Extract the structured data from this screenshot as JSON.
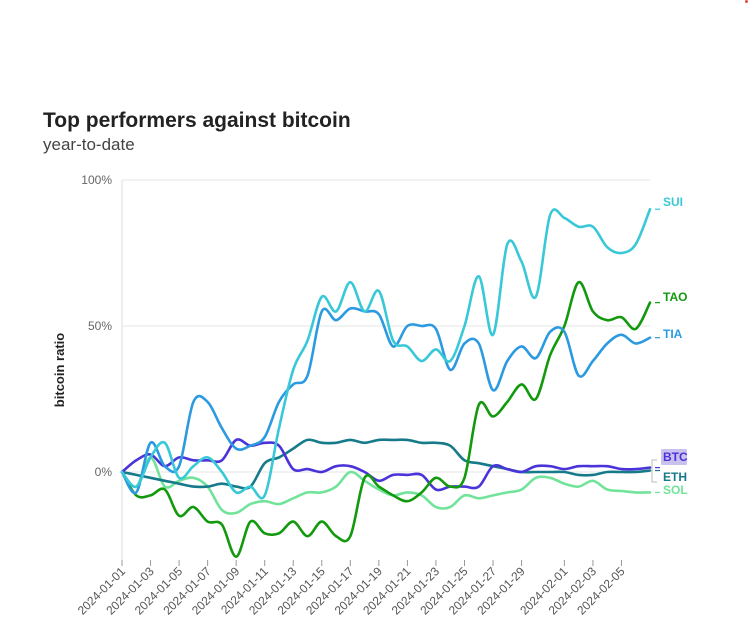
{
  "header": {
    "title": "Top performers against bitcoin",
    "subtitle": "year-to-date"
  },
  "chart_data": {
    "type": "line",
    "title": "Top performers against bitcoin",
    "subtitle": "year-to-date",
    "xlabel": "",
    "ylabel": "bitcoin ratio",
    "ylim": [
      -0.3,
      1.0
    ],
    "yticks": [
      {
        "value": 0,
        "label": "0%"
      },
      {
        "value": 0.5,
        "label": "50%"
      },
      {
        "value": 1.0,
        "label": "100%"
      }
    ],
    "xlim": [
      0,
      37
    ],
    "xtick_labels": [
      "2024-01-01",
      "2024-01-03",
      "2024-01-05",
      "2024-01-07",
      "2024-01-09",
      "2024-01-11",
      "2024-01-13",
      "2024-01-15",
      "2024-01-17",
      "2024-01-19",
      "2024-01-21",
      "2024-01-23",
      "2024-01-25",
      "2024-01-27",
      "2024-01-29",
      "2024-02-01",
      "2024-02-03",
      "2024-02-05"
    ],
    "xtick_positions": [
      0,
      2,
      4,
      6,
      8,
      10,
      12,
      14,
      16,
      18,
      20,
      22,
      24,
      26,
      28,
      31,
      33,
      35
    ],
    "grid": "horizontal",
    "series": [
      {
        "name": "SUI",
        "color": "#39c8d8",
        "values": [
          0,
          -0.05,
          0.05,
          0.1,
          -0.02,
          0.02,
          0.05,
          0.0,
          -0.07,
          -0.05,
          -0.08,
          0.15,
          0.35,
          0.45,
          0.6,
          0.55,
          0.65,
          0.55,
          0.62,
          0.45,
          0.43,
          0.38,
          0.42,
          0.38,
          0.5,
          0.67,
          0.47,
          0.78,
          0.72,
          0.6,
          0.88,
          0.87,
          0.84,
          0.84,
          0.77,
          0.75,
          0.78,
          0.9
        ]
      },
      {
        "name": "TAO",
        "color": "#12990e",
        "values": [
          0,
          -0.08,
          -0.08,
          -0.06,
          -0.15,
          -0.12,
          -0.17,
          -0.18,
          -0.29,
          -0.17,
          -0.21,
          -0.21,
          -0.17,
          -0.22,
          -0.17,
          -0.22,
          -0.22,
          -0.02,
          -0.05,
          -0.08,
          -0.1,
          -0.07,
          -0.02,
          -0.05,
          -0.02,
          0.23,
          0.19,
          0.24,
          0.3,
          0.25,
          0.4,
          0.5,
          0.65,
          0.55,
          0.52,
          0.53,
          0.49,
          0.58
        ]
      },
      {
        "name": "TIA",
        "color": "#2c9ae0",
        "values": [
          0,
          -0.07,
          0.1,
          0.02,
          0.02,
          0.24,
          0.24,
          0.15,
          0.08,
          0.09,
          0.12,
          0.24,
          0.3,
          0.33,
          0.55,
          0.52,
          0.56,
          0.55,
          0.54,
          0.43,
          0.5,
          0.5,
          0.49,
          0.35,
          0.44,
          0.44,
          0.28,
          0.38,
          0.43,
          0.39,
          0.48,
          0.48,
          0.33,
          0.38,
          0.44,
          0.47,
          0.44,
          0.46
        ]
      },
      {
        "name": "BTC",
        "color": "#4a33d9",
        "values": [
          0,
          0.04,
          0.06,
          0.02,
          0.05,
          0.04,
          0.04,
          0.04,
          0.11,
          0.09,
          0.1,
          0.09,
          0.01,
          0.01,
          0.0,
          0.02,
          0.02,
          0.0,
          -0.03,
          -0.01,
          -0.01,
          -0.01,
          -0.06,
          -0.05,
          -0.05,
          -0.05,
          0.02,
          0.01,
          0.0,
          0.02,
          0.02,
          0.01,
          0.02,
          0.02,
          0.02,
          0.01,
          0.01,
          0.015
        ]
      },
      {
        "name": "ETH",
        "color": "#177a8a",
        "values": [
          0,
          -0.01,
          -0.02,
          -0.03,
          -0.04,
          -0.05,
          -0.05,
          -0.04,
          -0.05,
          -0.05,
          0.03,
          0.05,
          0.08,
          0.11,
          0.1,
          0.1,
          0.11,
          0.1,
          0.11,
          0.11,
          0.11,
          0.1,
          0.1,
          0.09,
          0.04,
          0.03,
          0.02,
          0.01,
          0.0,
          0.0,
          0.0,
          0.0,
          -0.01,
          -0.01,
          0.0,
          0.0,
          0.0,
          0.005
        ]
      },
      {
        "name": "SOL",
        "color": "#72e39a",
        "values": [
          0,
          -0.05,
          0.05,
          -0.05,
          -0.03,
          -0.02,
          -0.05,
          -0.13,
          -0.14,
          -0.11,
          -0.1,
          -0.11,
          -0.09,
          -0.07,
          -0.07,
          -0.05,
          0.0,
          -0.03,
          -0.06,
          -0.08,
          -0.07,
          -0.08,
          -0.12,
          -0.12,
          -0.08,
          -0.09,
          -0.08,
          -0.07,
          -0.06,
          -0.02,
          -0.02,
          -0.04,
          -0.05,
          -0.03,
          -0.06,
          -0.065,
          -0.07,
          -0.07
        ]
      }
    ]
  }
}
